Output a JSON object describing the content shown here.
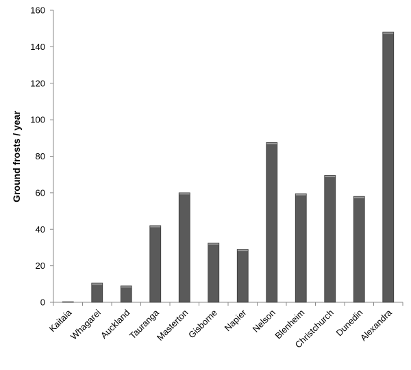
{
  "chart_data": {
    "type": "bar",
    "title": "",
    "xlabel": "",
    "ylabel": "Ground frosts / year",
    "categories": [
      "Kaitaia",
      "Whagarei",
      "Auckland",
      "Tauranga",
      "Masterton",
      "Gisborne",
      "Napier",
      "Nelson",
      "Blenheim",
      "Christchurch",
      "Dunedin",
      "Alexandra"
    ],
    "values": [
      0.3,
      10.5,
      9,
      42,
      60,
      32.5,
      29,
      87.5,
      59.5,
      69.5,
      58,
      148
    ],
    "ylim": [
      0,
      160
    ],
    "yticks": [
      "0",
      "20",
      "40",
      "60",
      "80",
      "100",
      "120",
      "140",
      "160"
    ],
    "grid": false,
    "legend": "none",
    "colors": {
      "bar": "#5a5a5a",
      "bar_edge": "#3a3a3a",
      "bar_highlight": "#9a9a9a",
      "axis": "#888888"
    }
  }
}
